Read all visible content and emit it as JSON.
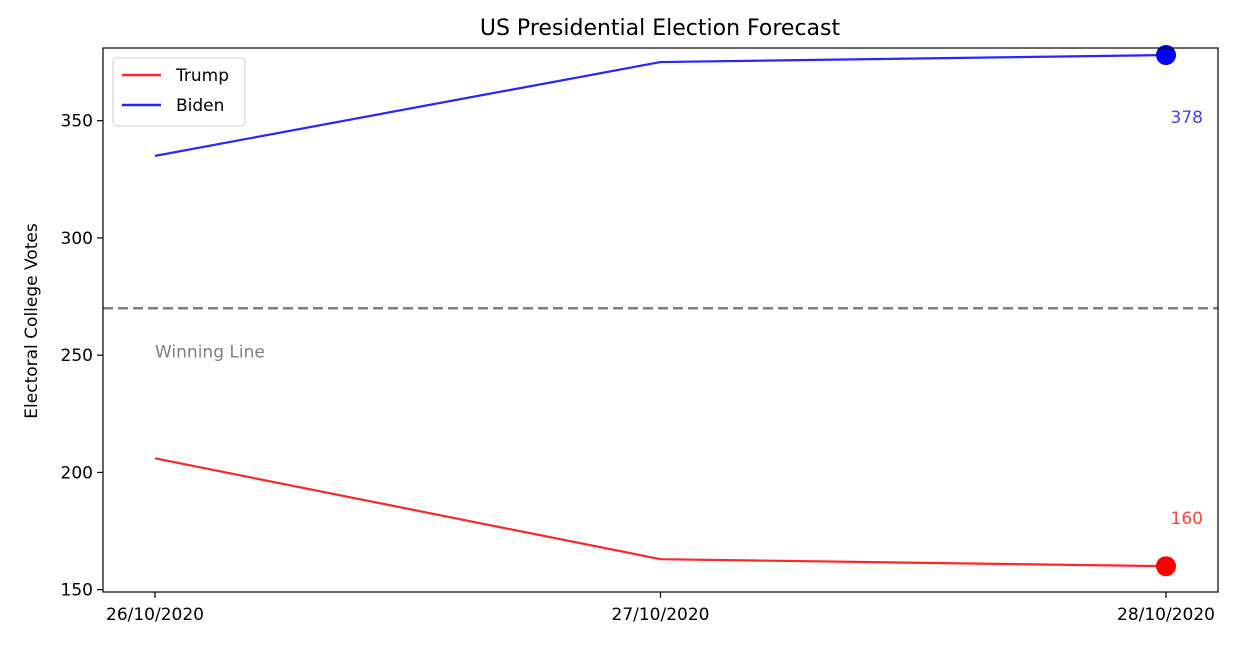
{
  "chart_data": {
    "type": "line",
    "title": "US Presidential Election Forecast",
    "xlabel": "",
    "ylabel": "Electoral College Votes",
    "categories": [
      "26/10/2020",
      "27/10/2020",
      "28/10/2020"
    ],
    "ylim": [
      149,
      381
    ],
    "yticks": [
      150,
      200,
      250,
      300,
      350
    ],
    "grid": false,
    "legend_position": "top-left",
    "series": [
      {
        "name": "Trump",
        "color": "#ff0000",
        "values": [
          206,
          163,
          160
        ],
        "end_label": "160",
        "end_marker": true
      },
      {
        "name": "Biden",
        "color": "#0000ff",
        "values": [
          335,
          375,
          378
        ],
        "end_label": "378",
        "end_marker": true
      }
    ],
    "reference_line": {
      "y": 270,
      "label": "Winning Line",
      "color": "#808080",
      "style": "dashed"
    }
  }
}
